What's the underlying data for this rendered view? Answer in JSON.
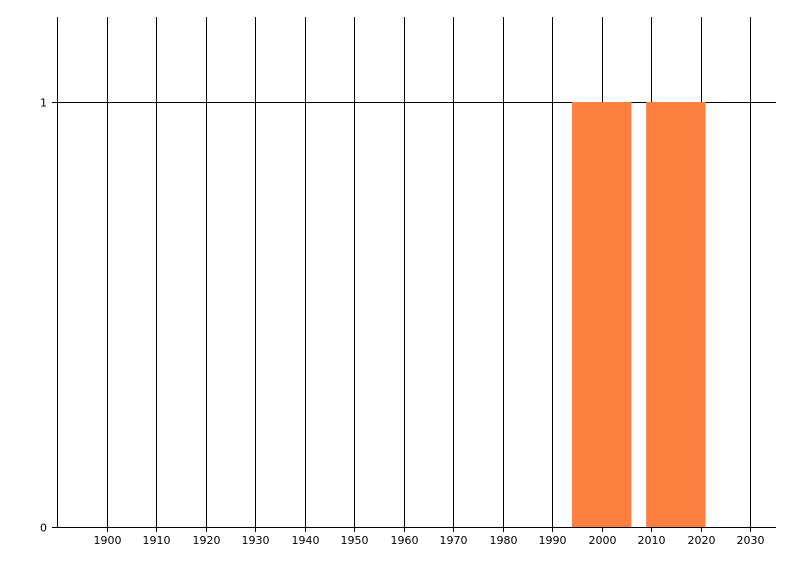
{
  "chart_data": {
    "type": "bar",
    "title": "",
    "xlabel": "",
    "ylabel": "",
    "x": [
      2000,
      2015
    ],
    "bar_width": 12,
    "values": [
      1,
      1
    ],
    "xlim": [
      1890,
      2035
    ],
    "ylim": [
      0,
      1.2
    ],
    "xticks": [
      1900,
      1910,
      1920,
      1930,
      1940,
      1950,
      1960,
      1970,
      1980,
      1990,
      2000,
      2010,
      2020,
      2030
    ],
    "xtick_labels": [
      "1900",
      "1910",
      "1920",
      "1930",
      "1940",
      "1950",
      "1960",
      "1970",
      "1980",
      "1990",
      "2000",
      "2010",
      "2020",
      "2030"
    ],
    "yticks": [
      0,
      1
    ],
    "ytick_labels": [
      "0",
      "1"
    ],
    "grid": "on",
    "legend": "none",
    "bar_color": "#FF7F41",
    "grid_color": "#000000"
  }
}
